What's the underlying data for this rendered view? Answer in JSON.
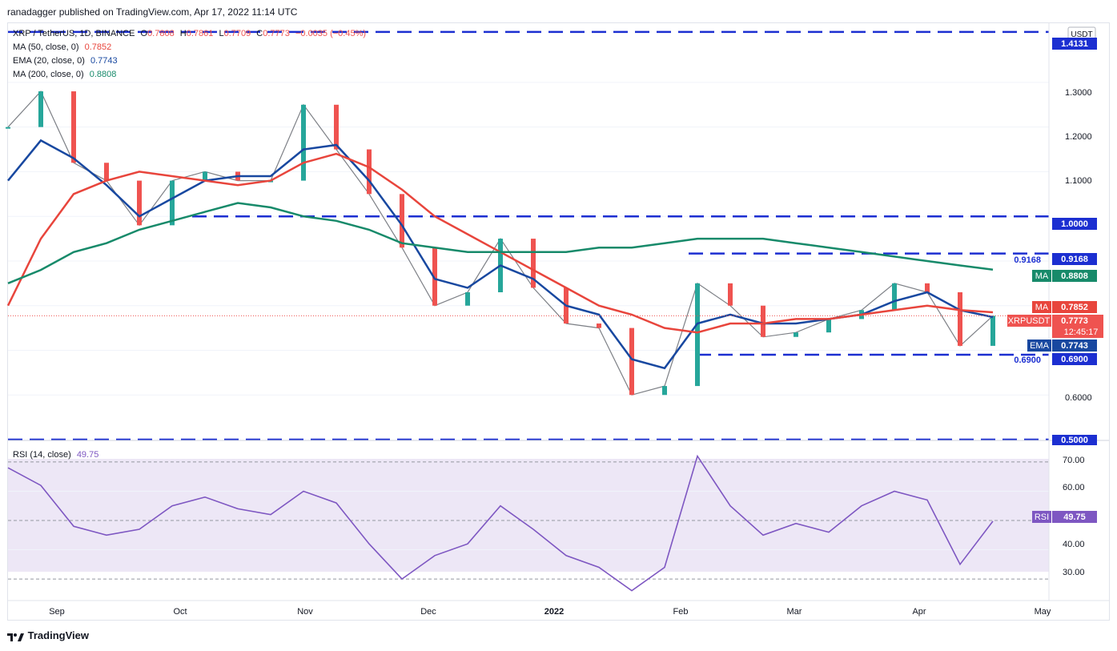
{
  "header": {
    "publisher": "ranadagger published on TradingView.com, Apr 17, 2022 11:14 UTC"
  },
  "legend": {
    "symbol": "XRP / TetherUS, 1D, BINANCE",
    "o_label": "O",
    "o": "0.7808",
    "h_label": "H",
    "h": "0.7861",
    "l_label": "L",
    "l": "0.7709",
    "c_label": "C",
    "c": "0.7773",
    "change": "−0.0035 (−0.45%)",
    "ma50": "MA (50, close, 0)",
    "ma50_val": "0.7852",
    "ema20": "EMA (20, close, 0)",
    "ema20_val": "0.7743",
    "ma200": "MA (200, close, 0)",
    "ma200_val": "0.8808",
    "rsi": "RSI (14, close)",
    "rsi_val": "49.75"
  },
  "price_axis": {
    "unit": "USDT",
    "ticks": [
      "1.3000",
      "1.2000",
      "1.1000",
      "1.0000",
      "0.6000"
    ],
    "levels": [
      {
        "value": 1.4131,
        "label": "1.4131"
      },
      {
        "value": 1.0,
        "label": "1.0000"
      },
      {
        "value": 0.9168,
        "label": "0.9168"
      },
      {
        "value": 0.69,
        "label": "0.6900"
      },
      {
        "value": 0.5,
        "label": "0.5000"
      }
    ],
    "badges": {
      "ma200": {
        "title": "MA",
        "value": "0.8808"
      },
      "ma50": {
        "title": "MA",
        "value": "0.7852"
      },
      "symbol": {
        "title": "XRPUSDT",
        "value": "0.7773",
        "countdown": "12:45:17"
      },
      "ema": {
        "title": "EMA",
        "value": "0.7743"
      }
    }
  },
  "rsi_axis": {
    "ticks": [
      "70.00",
      "60.00",
      "40.00",
      "30.00"
    ],
    "badge": {
      "title": "RSI",
      "value": "49.75"
    }
  },
  "time_axis": {
    "labels": [
      "Sep",
      "Oct",
      "Nov",
      "Dec",
      "2022",
      "Feb",
      "Mar",
      "Apr",
      "May"
    ]
  },
  "footer": {
    "brand": "TradingView"
  },
  "colors": {
    "up": "#26a69a",
    "down": "#ef5350",
    "ema20": "#1848a0",
    "ma50": "#e8453c",
    "ma200": "#178a6a",
    "level": "#1c2fd1",
    "rsi": "#7e57c2",
    "rsi_band": "#ede7f6"
  },
  "chart_data": {
    "type": "line",
    "title": "XRP / TetherUS, 1D, BINANCE",
    "xlabel": "",
    "ylabel": "",
    "ylim": [
      0.5,
      1.42
    ],
    "x": [
      "2021-09-01",
      "2021-09-08",
      "2021-09-15",
      "2021-09-22",
      "2021-10-01",
      "2021-10-08",
      "2021-10-15",
      "2021-10-22",
      "2021-11-01",
      "2021-11-08",
      "2021-11-15",
      "2021-11-22",
      "2021-12-01",
      "2021-12-08",
      "2021-12-15",
      "2021-12-22",
      "2022-01-01",
      "2022-01-08",
      "2022-01-15",
      "2022-01-22",
      "2022-02-01",
      "2022-02-08",
      "2022-02-15",
      "2022-02-22",
      "2022-03-01",
      "2022-03-08",
      "2022-03-15",
      "2022-03-22",
      "2022-04-01",
      "2022-04-08",
      "2022-04-15"
    ],
    "series": [
      {
        "name": "XRPUSDT",
        "values": [
          1.2,
          1.28,
          1.12,
          1.08,
          0.98,
          1.08,
          1.1,
          1.08,
          1.08,
          1.25,
          1.15,
          1.05,
          0.93,
          0.8,
          0.83,
          0.95,
          0.84,
          0.76,
          0.75,
          0.6,
          0.62,
          0.85,
          0.8,
          0.73,
          0.74,
          0.77,
          0.79,
          0.85,
          0.83,
          0.71,
          0.7773
        ]
      },
      {
        "name": "EMA",
        "values": [
          1.08,
          1.17,
          1.13,
          1.07,
          1.0,
          1.04,
          1.08,
          1.09,
          1.09,
          1.15,
          1.16,
          1.08,
          0.98,
          0.86,
          0.84,
          0.89,
          0.86,
          0.8,
          0.78,
          0.68,
          0.66,
          0.76,
          0.78,
          0.76,
          0.76,
          0.77,
          0.78,
          0.81,
          0.83,
          0.79,
          0.7743
        ]
      },
      {
        "name": "MA",
        "values": [
          0.8,
          0.95,
          1.05,
          1.08,
          1.1,
          1.09,
          1.08,
          1.07,
          1.08,
          1.12,
          1.14,
          1.11,
          1.06,
          1.0,
          0.96,
          0.92,
          0.88,
          0.84,
          0.8,
          0.78,
          0.75,
          0.74,
          0.76,
          0.76,
          0.77,
          0.77,
          0.78,
          0.79,
          0.8,
          0.79,
          0.7852
        ]
      },
      {
        "name": "MA",
        "values": [
          0.85,
          0.88,
          0.92,
          0.94,
          0.97,
          0.99,
          1.01,
          1.03,
          1.02,
          1.0,
          0.99,
          0.97,
          0.94,
          0.93,
          0.92,
          0.92,
          0.92,
          0.92,
          0.93,
          0.93,
          0.94,
          0.95,
          0.95,
          0.95,
          0.94,
          0.93,
          0.92,
          0.91,
          0.9,
          0.89,
          0.8808
        ]
      }
    ],
    "rsi": {
      "name": "RSI",
      "ylim": [
        24,
        76
      ],
      "values": [
        68,
        62,
        48,
        45,
        47,
        55,
        58,
        54,
        52,
        60,
        56,
        42,
        30,
        38,
        42,
        55,
        47,
        38,
        34,
        26,
        34,
        72,
        55,
        45,
        49,
        46,
        55,
        60,
        57,
        35,
        49.75
      ]
    },
    "annotations": [
      "1.4131",
      "1.0000",
      "0.9168",
      "0.6900",
      "0.5000"
    ],
    "grid": true,
    "legend": "top-left"
  }
}
